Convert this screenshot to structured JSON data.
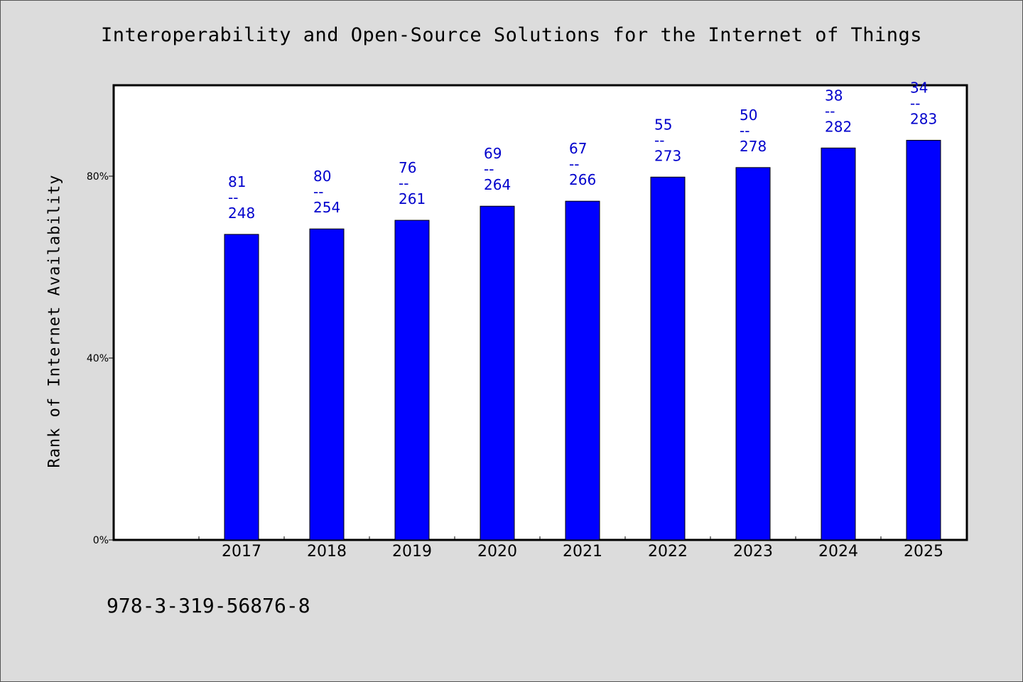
{
  "chart_data": {
    "type": "bar",
    "title": "Interoperability and Open-Source Solutions for the Internet of Things",
    "xlabel": "",
    "ylabel": "Rank of Internet Availability",
    "categories": [
      "2017",
      "2018",
      "2019",
      "2020",
      "2021",
      "2022",
      "2023",
      "2024",
      "2025"
    ],
    "values": [
      67.2,
      68.4,
      70.3,
      73.4,
      74.5,
      79.8,
      81.9,
      86.2,
      87.9
    ],
    "data_labels": [
      [
        "81",
        "--",
        "248"
      ],
      [
        "80",
        "--",
        "254"
      ],
      [
        "76",
        "--",
        "261"
      ],
      [
        "69",
        "--",
        "264"
      ],
      [
        "67",
        "--",
        "266"
      ],
      [
        "55",
        "--",
        "273"
      ],
      [
        "50",
        "--",
        "278"
      ],
      [
        "38",
        "--",
        "282"
      ],
      [
        "34",
        "--",
        "283"
      ]
    ],
    "yticks": [
      0,
      40,
      80
    ],
    "ytick_labels": [
      "0%",
      "40%",
      "80%"
    ],
    "ylim": [
      0,
      100
    ],
    "grid": false,
    "legend": "none",
    "bar_color": "#0000ff",
    "label_color": "#0000cc"
  },
  "footer": {
    "isbn": "978-3-319-56876-8"
  }
}
